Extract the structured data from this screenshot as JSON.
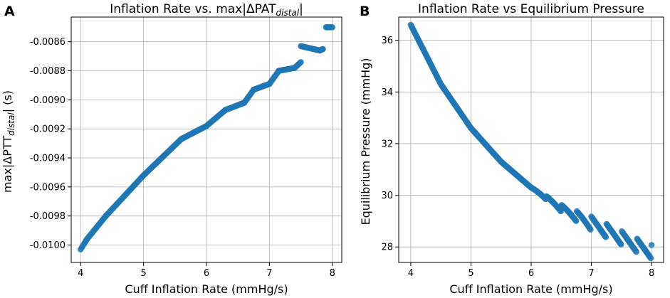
{
  "figure": {
    "panels": [
      "A",
      "B"
    ],
    "colors": {
      "marker": "#1f77b4",
      "grid": "#b0b0b0",
      "axis": "#000000"
    }
  },
  "chart_data": [
    {
      "panel": "A",
      "type": "scatter",
      "title_main": "Inflation Rate vs. max|ΔPAT",
      "title_sub": "distal",
      "title_close": "|",
      "xlabel": "Cuff Inflation Rate (mmHg/s)",
      "ylabel_main": "max|ΔPTT",
      "ylabel_sub": "distal",
      "ylabel_close": "| (s)",
      "xlim": [
        3.85,
        8.15
      ],
      "ylim": [
        -0.01012,
        -0.00843
      ],
      "xticks": [
        4,
        5,
        6,
        7,
        8
      ],
      "xtick_labels": [
        "4",
        "5",
        "6",
        "7",
        "8"
      ],
      "yticks": [
        -0.01,
        -0.0098,
        -0.0096,
        -0.0094,
        -0.0092,
        -0.009,
        -0.0088,
        -0.0086
      ],
      "ytick_labels": [
        "-0.0100",
        "-0.0098",
        "-0.0096",
        "-0.0094",
        "-0.0092",
        "-0.0090",
        "-0.0088",
        "-0.0086"
      ],
      "grid": true,
      "segments": [
        {
          "x": [
            4.0,
            4.1
          ],
          "y": [
            -0.01003,
            -0.00996
          ]
        },
        {
          "x": [
            4.1,
            4.4
          ],
          "y": [
            -0.00996,
            -0.0098
          ]
        },
        {
          "x": [
            4.4,
            5.0
          ],
          "y": [
            -0.0098,
            -0.00952
          ]
        },
        {
          "x": [
            5.0,
            5.6
          ],
          "y": [
            -0.00952,
            -0.00927
          ]
        },
        {
          "x": [
            5.6,
            6.0
          ],
          "y": [
            -0.00927,
            -0.00918
          ]
        },
        {
          "x": [
            6.0,
            6.3
          ],
          "y": [
            -0.00918,
            -0.00907
          ]
        },
        {
          "x": [
            6.3,
            6.6
          ],
          "y": [
            -0.00907,
            -0.00902
          ]
        },
        {
          "x": [
            6.6,
            6.75
          ],
          "y": [
            -0.00902,
            -0.00893
          ]
        },
        {
          "x": [
            6.75,
            7.0
          ],
          "y": [
            -0.00893,
            -0.00889
          ]
        },
        {
          "x": [
            7.0,
            7.15
          ],
          "y": [
            -0.00889,
            -0.0088
          ]
        },
        {
          "x": [
            7.15,
            7.4
          ],
          "y": [
            -0.0088,
            -0.00878
          ]
        },
        {
          "x": [
            7.4,
            7.5
          ],
          "y": [
            -0.00878,
            -0.00874
          ]
        },
        {
          "x": [
            7.5,
            7.8
          ],
          "y": [
            -0.00863,
            -0.00866
          ]
        },
        {
          "x": [
            7.8,
            7.85
          ],
          "y": [
            -0.00866,
            -0.00865
          ]
        },
        {
          "x": [
            7.9,
            8.0
          ],
          "y": [
            -0.0085,
            -0.0085
          ]
        }
      ]
    },
    {
      "panel": "B",
      "type": "scatter",
      "title_main": "Inflation Rate vs Equilibrium Pressure",
      "xlabel": "Cuff Inflation Rate (mmHg/s)",
      "ylabel_main": "Equilibrium Pressure (mmHg)",
      "xlim": [
        3.8,
        8.2
      ],
      "ylim": [
        27.4,
        36.9
      ],
      "xticks": [
        4,
        5,
        6,
        7,
        8
      ],
      "xtick_labels": [
        "4",
        "5",
        "6",
        "7",
        "8"
      ],
      "yticks": [
        28,
        30,
        32,
        34,
        36
      ],
      "ytick_labels": [
        "28",
        "30",
        "32",
        "34",
        "36"
      ],
      "grid": true,
      "curve": {
        "x": [
          4.0,
          4.5,
          5.0,
          5.5,
          6.0,
          6.5,
          7.0,
          7.5,
          8.0
        ],
        "y": [
          36.6,
          34.3,
          32.6,
          31.3,
          30.3,
          29.5,
          28.9,
          28.35,
          27.8
        ]
      },
      "sawtooth_from_x": 6.0,
      "sawtooth_period": 0.25,
      "sawtooth_amplitude": 0.55
    }
  ]
}
